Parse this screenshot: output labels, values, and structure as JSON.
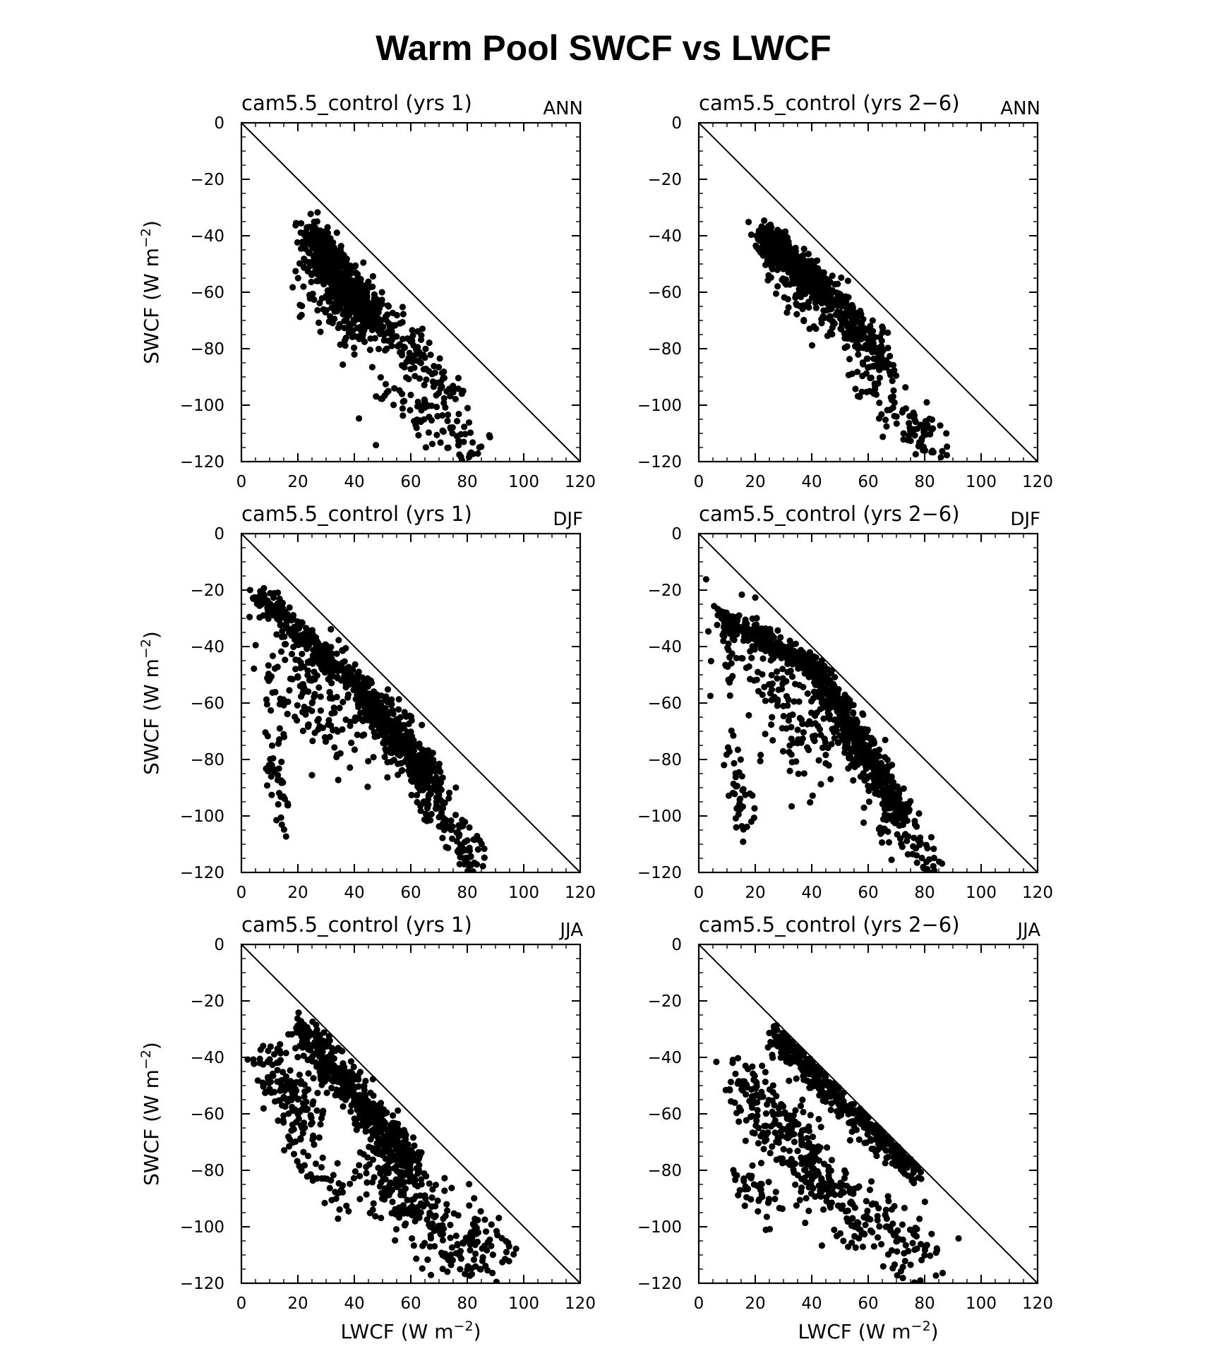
{
  "figure": {
    "title": "Warm Pool SWCF vs LWCF"
  },
  "chart_data": [
    {
      "type": "scatter",
      "title": "cam5.5_control (yrs 1)",
      "season": "ANN",
      "xlabel": "",
      "ylabel": "SWCF (W m^-2)",
      "xlim": [
        0,
        120
      ],
      "ylim": [
        -120,
        0
      ],
      "xticks": [
        "0",
        "20",
        "40",
        "60",
        "80",
        "100",
        "120"
      ],
      "yticks": [
        "0",
        "-20",
        "-40",
        "-60",
        "-80",
        "-100",
        "-120"
      ],
      "reference_line": [
        [
          0,
          0
        ],
        [
          120,
          -120
        ]
      ],
      "clusters": [
        {
          "x": [
            24,
            46
          ],
          "y": [
            -40,
            -70
          ],
          "n": 650,
          "spread": 4
        },
        {
          "x": [
            45,
            75
          ],
          "y": [
            -66,
            -96
          ],
          "n": 140,
          "spread": 4.5
        },
        {
          "x": [
            50,
            86
          ],
          "y": [
            -95,
            -118
          ],
          "n": 90,
          "spread": 5
        },
        {
          "x": [
            22,
            40
          ],
          "y": [
            -55,
            -75
          ],
          "n": 70,
          "spread": 5
        }
      ]
    },
    {
      "type": "scatter",
      "title": "cam5.5_control (yrs 2-6)",
      "season": "ANN",
      "xlabel": "",
      "ylabel": "",
      "xlim": [
        0,
        120
      ],
      "ylim": [
        -120,
        0
      ],
      "xticks": [
        "0",
        "20",
        "40",
        "60",
        "80",
        "100",
        "120"
      ],
      "yticks": [
        "0",
        "-20",
        "-40",
        "-60",
        "-80",
        "-100",
        "-120"
      ],
      "reference_line": [
        [
          0,
          0
        ],
        [
          120,
          -120
        ]
      ],
      "clusters": [
        {
          "x": [
            22,
            44
          ],
          "y": [
            -39,
            -58
          ],
          "n": 550,
          "spread": 2.5
        },
        {
          "x": [
            42,
            66
          ],
          "y": [
            -58,
            -84
          ],
          "n": 260,
          "spread": 3.5
        },
        {
          "x": [
            55,
            85
          ],
          "y": [
            -84,
            -118
          ],
          "n": 110,
          "spread": 5
        },
        {
          "x": [
            23,
            42
          ],
          "y": [
            -45,
            -72
          ],
          "n": 70,
          "spread": 4
        }
      ]
    },
    {
      "type": "scatter",
      "title": "cam5.5_control (yrs 1)",
      "season": "DJF",
      "xlabel": "",
      "ylabel": "SWCF (W m^-2)",
      "xlim": [
        0,
        120
      ],
      "ylim": [
        -120,
        0
      ],
      "xticks": [
        "0",
        "20",
        "40",
        "60",
        "80",
        "100",
        "120"
      ],
      "yticks": [
        "0",
        "-20",
        "-40",
        "-60",
        "-80",
        "-100",
        "-120"
      ],
      "reference_line": [
        [
          0,
          0
        ],
        [
          120,
          -120
        ]
      ],
      "clusters": [
        {
          "x": [
            6,
            44
          ],
          "y": [
            -22,
            -56
          ],
          "n": 280,
          "spread": 2.5
        },
        {
          "x": [
            44,
            68
          ],
          "y": [
            -58,
            -88
          ],
          "n": 480,
          "spread": 3.5
        },
        {
          "x": [
            62,
            84
          ],
          "y": [
            -88,
            -118
          ],
          "n": 110,
          "spread": 4
        },
        {
          "x": [
            10,
            45
          ],
          "y": [
            -40,
            -75
          ],
          "n": 180,
          "spread": 9
        },
        {
          "x": [
            11,
            15
          ],
          "y": [
            -70,
            -105
          ],
          "n": 40,
          "spread": 3
        }
      ]
    },
    {
      "type": "scatter",
      "title": "cam5.5_control (yrs 2-6)",
      "season": "DJF",
      "xlabel": "",
      "ylabel": "",
      "xlim": [
        0,
        120
      ],
      "ylim": [
        -120,
        0
      ],
      "xticks": [
        "0",
        "20",
        "40",
        "60",
        "80",
        "100",
        "120"
      ],
      "yticks": [
        "0",
        "-20",
        "-40",
        "-60",
        "-80",
        "-100",
        "-120"
      ],
      "reference_line": [
        [
          0,
          0
        ],
        [
          120,
          -120
        ]
      ],
      "clusters": [
        {
          "x": [
            7,
            42
          ],
          "y": [
            -29,
            -48
          ],
          "n": 280,
          "spread": 2
        },
        {
          "x": [
            42,
            72
          ],
          "y": [
            -50,
            -100
          ],
          "n": 500,
          "spread": 3.5
        },
        {
          "x": [
            64,
            84
          ],
          "y": [
            -100,
            -118
          ],
          "n": 60,
          "spread": 4
        },
        {
          "x": [
            10,
            45
          ],
          "y": [
            -35,
            -80
          ],
          "n": 180,
          "spread": 9
        },
        {
          "x": [
            12,
            17
          ],
          "y": [
            -75,
            -108
          ],
          "n": 40,
          "spread": 3
        }
      ]
    },
    {
      "type": "scatter",
      "title": "cam5.5_control (yrs 1)",
      "season": "JJA",
      "xlabel": "LWCF (W m^-2)",
      "ylabel": "SWCF (W m^-2)",
      "xlim": [
        0,
        120
      ],
      "ylim": [
        -120,
        0
      ],
      "xticks": [
        "0",
        "20",
        "40",
        "60",
        "80",
        "100",
        "120"
      ],
      "yticks": [
        "0",
        "-20",
        "-40",
        "-60",
        "-80",
        "-100",
        "-120"
      ],
      "reference_line": [
        [
          0,
          0
        ],
        [
          120,
          -120
        ]
      ],
      "clusters": [
        {
          "x": [
            21,
            62
          ],
          "y": [
            -30,
            -80
          ],
          "n": 560,
          "spread": 3.5
        },
        {
          "x": [
            7,
            26
          ],
          "y": [
            -40,
            -66
          ],
          "n": 130,
          "spread": 5
        },
        {
          "x": [
            44,
            88
          ],
          "y": [
            -78,
            -112
          ],
          "n": 260,
          "spread": 7
        },
        {
          "x": [
            15,
            35
          ],
          "y": [
            -62,
            -92
          ],
          "n": 50,
          "spread": 4
        }
      ]
    },
    {
      "type": "scatter",
      "title": "cam5.5_control (yrs 2-6)",
      "season": "JJA",
      "xlabel": "LWCF (W m^-2)",
      "ylabel": "",
      "xlim": [
        0,
        120
      ],
      "ylim": [
        -120,
        0
      ],
      "xticks": [
        "0",
        "20",
        "40",
        "60",
        "80",
        "100",
        "120"
      ],
      "yticks": [
        "0",
        "-20",
        "-40",
        "-60",
        "-80",
        "-100",
        "-120"
      ],
      "reference_line": [
        [
          0,
          0
        ],
        [
          120,
          -120
        ]
      ],
      "clusters": [
        {
          "x": [
            26,
            76
          ],
          "y": [
            -31,
            -80
          ],
          "n": 420,
          "spread": 3
        },
        {
          "x": [
            14,
            45
          ],
          "y": [
            -48,
            -82
          ],
          "n": 220,
          "spread": 7
        },
        {
          "x": [
            36,
            82
          ],
          "y": [
            -80,
            -115
          ],
          "n": 200,
          "spread": 6.5
        },
        {
          "x": [
            14,
            28
          ],
          "y": [
            -80,
            -96
          ],
          "n": 40,
          "spread": 4
        }
      ]
    }
  ]
}
